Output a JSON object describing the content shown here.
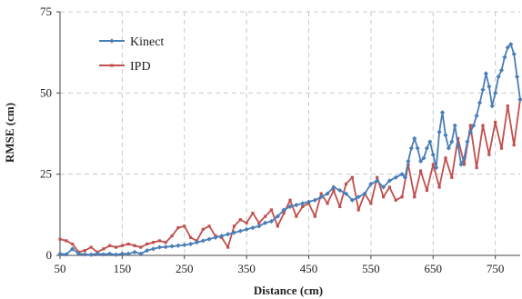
{
  "chart_data": {
    "type": "line",
    "xlabel": "Distance (cm)",
    "ylabel": "RMSE (cm)",
    "xlim": [
      50,
      790
    ],
    "ylim": [
      0,
      75
    ],
    "x_ticks": [
      50,
      150,
      250,
      350,
      450,
      550,
      650,
      750
    ],
    "y_ticks": [
      0,
      25,
      50,
      75
    ],
    "grid": true,
    "legend_position": "top-left",
    "series": [
      {
        "name": "Kinect",
        "color": "#4a7eb8",
        "marker": "diamond",
        "x": [
          50,
          60,
          70,
          80,
          90,
          100,
          110,
          120,
          130,
          140,
          150,
          160,
          170,
          180,
          190,
          200,
          210,
          220,
          230,
          240,
          250,
          260,
          270,
          280,
          290,
          300,
          310,
          320,
          330,
          340,
          350,
          360,
          370,
          380,
          390,
          400,
          410,
          420,
          430,
          440,
          450,
          460,
          470,
          480,
          490,
          500,
          510,
          520,
          530,
          540,
          550,
          560,
          570,
          580,
          590,
          600,
          605,
          610,
          615,
          620,
          625,
          630,
          635,
          640,
          645,
          650,
          655,
          660,
          665,
          670,
          675,
          680,
          685,
          690,
          695,
          700,
          705,
          710,
          715,
          720,
          725,
          730,
          735,
          740,
          745,
          750,
          755,
          760,
          765,
          770,
          775,
          780,
          785,
          790
        ],
        "y": [
          0.5,
          0.3,
          2,
          0.5,
          0.3,
          0.2,
          0.5,
          0.3,
          0.5,
          0.2,
          0.5,
          0.5,
          1,
          0.5,
          1.5,
          2,
          2.5,
          2.6,
          2.8,
          3,
          3.2,
          3.5,
          4,
          4.5,
          5,
          5.5,
          6,
          6.5,
          7,
          7.5,
          8,
          8.5,
          9,
          10,
          10.5,
          12,
          14,
          15,
          15.5,
          16,
          16.5,
          17,
          18,
          19,
          21,
          20,
          19,
          17,
          18,
          19,
          22,
          23,
          21,
          23,
          24,
          25,
          24,
          29,
          33,
          36,
          33,
          29,
          30,
          33,
          35,
          31,
          27,
          38,
          44,
          37,
          33,
          35,
          40,
          34,
          28,
          30,
          35,
          38,
          40,
          43,
          47,
          51,
          56,
          52,
          46,
          50,
          55,
          57,
          61,
          64,
          65,
          62,
          55,
          48
        ]
      },
      {
        "name": "IPD",
        "color": "#c0504d",
        "marker": "square",
        "x": [
          50,
          60,
          70,
          80,
          90,
          100,
          110,
          120,
          130,
          140,
          150,
          160,
          170,
          180,
          190,
          200,
          210,
          220,
          230,
          240,
          250,
          260,
          270,
          280,
          290,
          300,
          310,
          320,
          330,
          340,
          350,
          360,
          370,
          380,
          390,
          400,
          410,
          420,
          430,
          440,
          450,
          460,
          470,
          480,
          490,
          500,
          510,
          520,
          530,
          540,
          550,
          560,
          570,
          580,
          590,
          600,
          610,
          620,
          630,
          640,
          650,
          660,
          670,
          680,
          690,
          700,
          710,
          720,
          730,
          740,
          750,
          760,
          770,
          780,
          790
        ],
        "y": [
          5,
          4.5,
          3.5,
          1,
          1.5,
          2.5,
          1,
          2,
          3,
          2.5,
          3,
          3.5,
          3,
          2.5,
          3.5,
          4,
          4.5,
          4,
          6,
          8.5,
          9,
          5.5,
          4.5,
          8,
          9,
          6,
          5.5,
          2.5,
          9,
          11,
          10,
          13,
          10,
          12,
          14,
          9,
          13,
          17,
          12,
          15,
          16,
          12,
          19,
          16,
          20,
          15,
          22,
          24,
          14,
          19,
          16,
          24,
          18,
          21,
          17,
          18,
          28,
          18,
          26,
          20,
          28,
          21,
          30,
          24,
          36,
          28,
          40,
          27,
          40,
          31,
          41,
          33,
          46,
          34,
          48
        ]
      }
    ]
  }
}
